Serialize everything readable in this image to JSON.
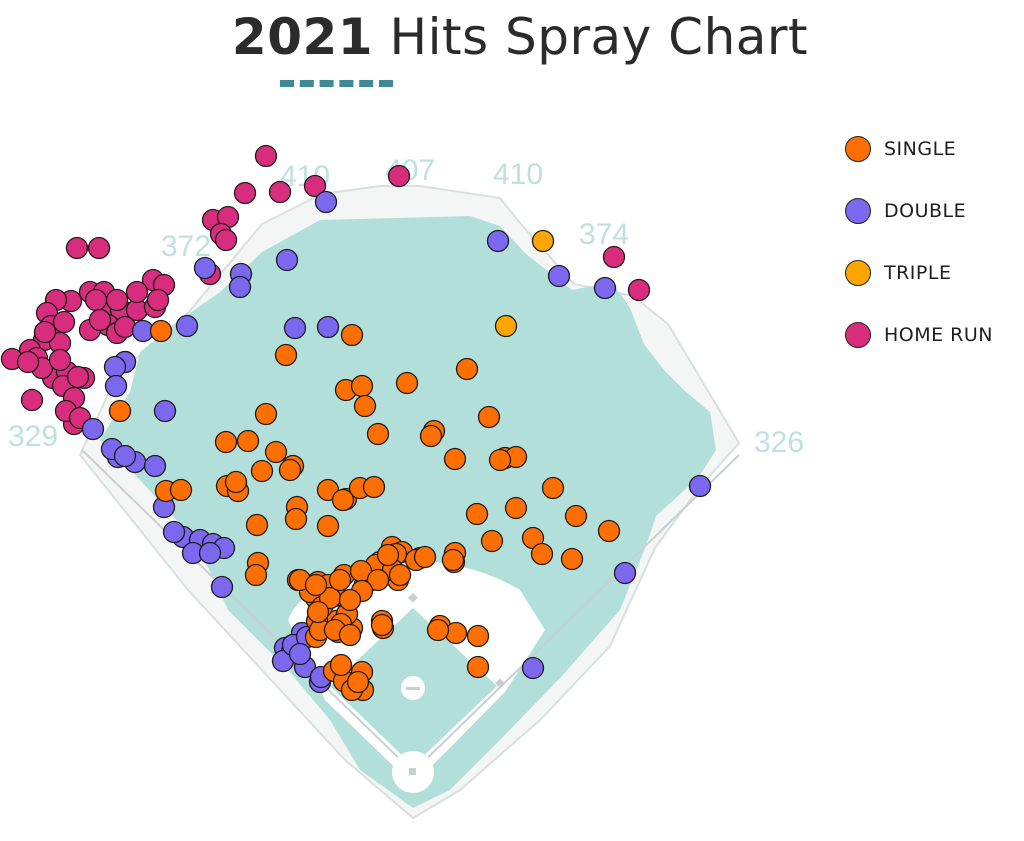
{
  "title": {
    "year": "2021",
    "rest": " Hits Spray Chart"
  },
  "colors": {
    "single": "#ff6e00",
    "double": "#7b68ee",
    "triple": "#ffa500",
    "home_run": "#d82c7c",
    "outfield": "#b3dfdb",
    "wall": "#e8ecec",
    "accent": "#3d8a94"
  },
  "legend": [
    {
      "label": "SINGLE",
      "type": "single"
    },
    {
      "label": "DOUBLE",
      "type": "double"
    },
    {
      "label": "TRIPLE",
      "type": "triple"
    },
    {
      "label": "HOME RUN",
      "type": "home_run"
    }
  ],
  "chart_data": {
    "type": "scatter",
    "title": "2021 Hits Spray Chart",
    "wall_distances": [
      "329",
      "372",
      "410",
      "407",
      "410",
      "374",
      "326"
    ],
    "counts": {
      "single": 110,
      "double": 44,
      "triple": 2,
      "home_run": 56
    }
  }
}
